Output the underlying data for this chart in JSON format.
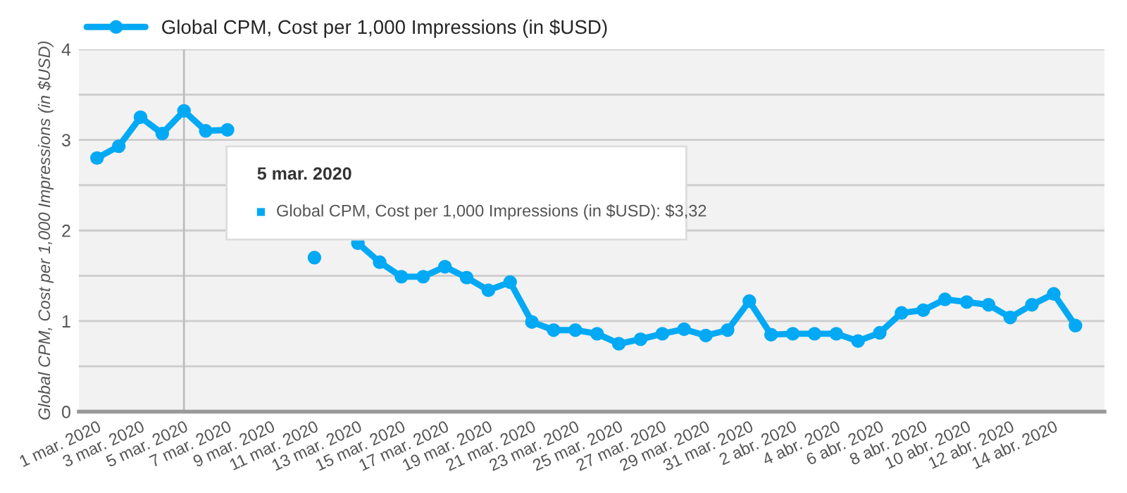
{
  "chart_data": {
    "type": "line",
    "ylabel": "Global CPM, Cost per 1,000 Impressions (in $USD)",
    "x": [
      "2020-03-01",
      "2020-03-02",
      "2020-03-03",
      "2020-03-04",
      "2020-03-05",
      "2020-03-06",
      "2020-03-07",
      "2020-03-08",
      "2020-03-09",
      "2020-03-10",
      "2020-03-11",
      "2020-03-12",
      "2020-03-13",
      "2020-03-14",
      "2020-03-15",
      "2020-03-16",
      "2020-03-17",
      "2020-03-18",
      "2020-03-19",
      "2020-03-20",
      "2020-03-21",
      "2020-03-22",
      "2020-03-23",
      "2020-03-24",
      "2020-03-25",
      "2020-03-26",
      "2020-03-27",
      "2020-03-28",
      "2020-03-29",
      "2020-03-30",
      "2020-03-31",
      "2020-04-01",
      "2020-04-02",
      "2020-04-03",
      "2020-04-04",
      "2020-04-05",
      "2020-04-06",
      "2020-04-07",
      "2020-04-08",
      "2020-04-09",
      "2020-04-10",
      "2020-04-11",
      "2020-04-12",
      "2020-04-13",
      "2020-04-14",
      "2020-04-15"
    ],
    "series": [
      {
        "name": "Global CPM, Cost per 1,000 Impressions (in $USD)",
        "color": "#03a9f4",
        "values": [
          2.8,
          2.93,
          3.25,
          3.07,
          3.32,
          3.1,
          3.11,
          null,
          null,
          null,
          1.7,
          null,
          1.86,
          1.65,
          1.49,
          1.49,
          1.6,
          1.48,
          1.34,
          1.43,
          0.99,
          0.9,
          0.9,
          0.86,
          0.75,
          0.8,
          0.86,
          0.91,
          0.84,
          0.9,
          1.22,
          0.85,
          0.86,
          0.86,
          0.86,
          0.78,
          0.87,
          1.09,
          1.12,
          1.24,
          1.21,
          1.18,
          1.04,
          1.18,
          1.3,
          0.95
        ]
      }
    ],
    "xlim": [
      "2020-02-29T04:00",
      "2020-04-16T08:00"
    ],
    "xticks": [
      {
        "value": "2020-03-01",
        "label": "1 mar. 2020"
      },
      {
        "value": "2020-03-03",
        "label": "3 mar. 2020"
      },
      {
        "value": "2020-03-05",
        "label": "5 mar. 2020"
      },
      {
        "value": "2020-03-07",
        "label": "7 mar. 2020"
      },
      {
        "value": "2020-03-09",
        "label": "9 mar. 2020"
      },
      {
        "value": "2020-03-11",
        "label": "11 mar. 2020"
      },
      {
        "value": "2020-03-13",
        "label": "13 mar. 2020"
      },
      {
        "value": "2020-03-15",
        "label": "15 mar. 2020"
      },
      {
        "value": "2020-03-17",
        "label": "17 mar. 2020"
      },
      {
        "value": "2020-03-19",
        "label": "19 mar. 2020"
      },
      {
        "value": "2020-03-21",
        "label": "21 mar. 2020"
      },
      {
        "value": "2020-03-23",
        "label": "23 mar. 2020"
      },
      {
        "value": "2020-03-25",
        "label": "25 mar. 2020"
      },
      {
        "value": "2020-03-27",
        "label": "27 mar. 2020"
      },
      {
        "value": "2020-03-29",
        "label": "29 mar. 2020"
      },
      {
        "value": "2020-03-31",
        "label": "31 mar. 2020"
      },
      {
        "value": "2020-04-02",
        "label": "2 abr. 2020"
      },
      {
        "value": "2020-04-04",
        "label": "4 abr. 2020"
      },
      {
        "value": "2020-04-06",
        "label": "6 abr. 2020"
      },
      {
        "value": "2020-04-08",
        "label": "8 abr. 2020"
      },
      {
        "value": "2020-04-10",
        "label": "10 abr. 2020"
      },
      {
        "value": "2020-04-12",
        "label": "12 abr. 2020"
      },
      {
        "value": "2020-04-14",
        "label": "14 abr. 2020"
      }
    ],
    "ylim": [
      0,
      4
    ],
    "yticks": [
      0,
      {
        "value": 0.5,
        "label": null
      },
      1,
      {
        "value": 1.5,
        "label": null
      },
      2,
      {
        "value": 2.5,
        "label": null
      },
      3,
      {
        "value": 3.5,
        "label": null
      },
      4
    ],
    "grid": "y",
    "legend": "top left",
    "marker": "circle",
    "line_style": "solid",
    "ref_lines": [
      {
        "axis": "x",
        "value": "2020-03-05",
        "label": null,
        "color": "#bdbdbd"
      }
    ],
    "annotations": [
      "5 mar. 2020",
      "Global CPM, Cost per 1,000 Impressions (in $USD): $3,32"
    ]
  }
}
